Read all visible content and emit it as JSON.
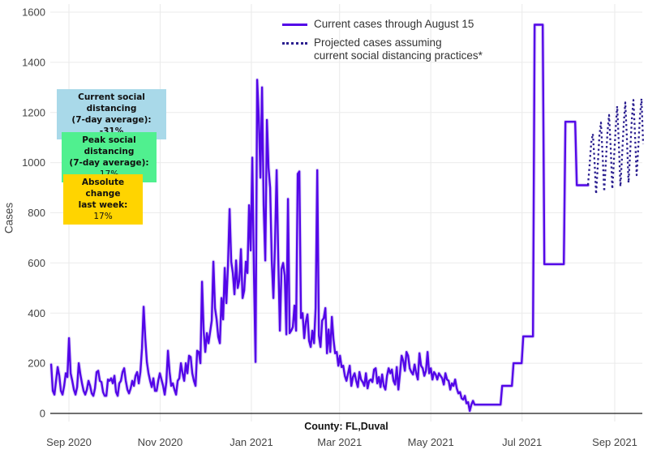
{
  "page": {
    "background": "#ffffff"
  },
  "legend": {
    "items": [
      {
        "label": "Current cases through August 15",
        "line_style": "solid",
        "color": "#5306e8"
      },
      {
        "label": "Projected cases assuming\ncurrent social distancing practices*",
        "line_style": "dotted",
        "color": "#2a1e8f"
      }
    ]
  },
  "info_boxes": [
    {
      "id": "current-social-distancing",
      "bg": "#a9d9e9",
      "line1": "Current social distancing",
      "line2": "(7-day average):",
      "value": "-31%"
    },
    {
      "id": "peak-social-distancing",
      "bg": "#50f08f",
      "line1": "Peak social distancing",
      "line2": "(7-day average):",
      "value": "17%"
    },
    {
      "id": "absolute-change",
      "bg": "#ffd400",
      "line1": "Absolute change",
      "line2": "last week:",
      "value": "17%"
    }
  ],
  "chart_data": {
    "type": "line",
    "title": "",
    "xlabel": "County: FL,Duval",
    "ylabel": "Cases",
    "grid": true,
    "legend_position": "top-center",
    "x_axis": {
      "day0": "2020-09-01",
      "ticks": [
        {
          "label": "Sep 2020",
          "day": 0
        },
        {
          "label": "Nov 2020",
          "day": 61
        },
        {
          "label": "Jan 2021",
          "day": 122
        },
        {
          "label": "Mar 2021",
          "day": 181
        },
        {
          "label": "May 2021",
          "day": 242
        },
        {
          "label": "Jul 2021",
          "day": 303
        },
        {
          "label": "Sep 2021",
          "day": 365
        }
      ]
    },
    "y_axis": {
      "min": 0,
      "max": 1600,
      "ticks": [
        0,
        200,
        400,
        600,
        800,
        1000,
        1200,
        1400,
        1600
      ]
    },
    "series": [
      {
        "name": "Current cases through August 15",
        "style": "solid",
        "color": "#5306e8",
        "start_day": -11.9,
        "day_step": 1.085,
        "values": [
          195,
          90,
          75,
          130,
          185,
          150,
          90,
          75,
          110,
          160,
          145,
          300,
          160,
          130,
          95,
          75,
          105,
          200,
          155,
          120,
          90,
          75,
          95,
          130,
          110,
          80,
          70,
          100,
          165,
          170,
          130,
          125,
          85,
          70,
          70,
          135,
          130,
          140,
          120,
          150,
          85,
          70,
          120,
          130,
          165,
          180,
          130,
          95,
          80,
          100,
          130,
          110,
          150,
          165,
          120,
          165,
          260,
          425,
          300,
          205,
          160,
          130,
          105,
          140,
          90,
          90,
          130,
          160,
          135,
          110,
          75,
          125,
          250,
          165,
          110,
          120,
          95,
          75,
          130,
          140,
          200,
          160,
          130,
          200,
          160,
          230,
          225,
          160,
          130,
          110,
          250,
          245,
          200,
          525,
          330,
          245,
          320,
          280,
          325,
          370,
          605,
          420,
          375,
          305,
          280,
          460,
          375,
          580,
          440,
          590,
          815,
          605,
          560,
          475,
          610,
          500,
          530,
          655,
          460,
          490,
          605,
          560,
          830,
          650,
          1020,
          560,
          205,
          1330,
          1180,
          940,
          1300,
          830,
          610,
          1170,
          980,
          900,
          610,
          460,
          680,
          970,
          620,
          330,
          575,
          600,
          550,
          315,
          855,
          320,
          330,
          345,
          430,
          330,
          955,
          965,
          380,
          400,
          300,
          365,
          395,
          290,
          265,
          330,
          280,
          420,
          970,
          310,
          265,
          370,
          380,
          420,
          240,
          335,
          245,
          385,
          295,
          240,
          245,
          190,
          230,
          185,
          190,
          150,
          130,
          160,
          190,
          110,
          145,
          160,
          130,
          105,
          165,
          135,
          125,
          110,
          160,
          100,
          130,
          135,
          125,
          175,
          180,
          120,
          145,
          105,
          155,
          110,
          95,
          150,
          180,
          160,
          175,
          130,
          115,
          185,
          95,
          160,
          230,
          210,
          170,
          245,
          230,
          180,
          165,
          155,
          195,
          160,
          135,
          240,
          190,
          180,
          150,
          170,
          245,
          160,
          180,
          135,
          165,
          155,
          135,
          160,
          150,
          140,
          115,
          160,
          135,
          130,
          95,
          120,
          110,
          135,
          100,
          80,
          85,
          60,
          55,
          70,
          40,
          45,
          10,
          35,
          50,
          35,
          35,
          35,
          35,
          35,
          35,
          35,
          35,
          35,
          35,
          35,
          35,
          35,
          35,
          35,
          35,
          35,
          110,
          110,
          110,
          110,
          110,
          110,
          110,
          200,
          200,
          200,
          200,
          200,
          200,
          307,
          307,
          307,
          307,
          307,
          307,
          307,
          1550,
          1550,
          1550,
          1550,
          1550,
          1550,
          595,
          595,
          595,
          595,
          595,
          595,
          595,
          595,
          595,
          595,
          595,
          595,
          595,
          1163,
          1163,
          1163,
          1163,
          1163,
          1163,
          1163,
          910,
          910,
          910,
          910,
          910,
          910,
          910,
          910
        ]
      },
      {
        "name": "Projected cases assuming current social distancing practices*",
        "style": "dotted",
        "color": "#2a1e8f",
        "start_day": 347.1,
        "day_step": 1.085,
        "values": [
          911,
          990,
          1080,
          1115,
          1010,
          875,
          985,
          1105,
          1160,
          1030,
          885,
          1000,
          1120,
          1190,
          1060,
          895,
          1010,
          1130,
          1225,
          1080,
          905,
          1025,
          1150,
          1240,
          1095,
          920,
          1040,
          1170,
          1250,
          1110,
          950,
          1060,
          1180,
          1255,
          1075
        ]
      }
    ]
  }
}
